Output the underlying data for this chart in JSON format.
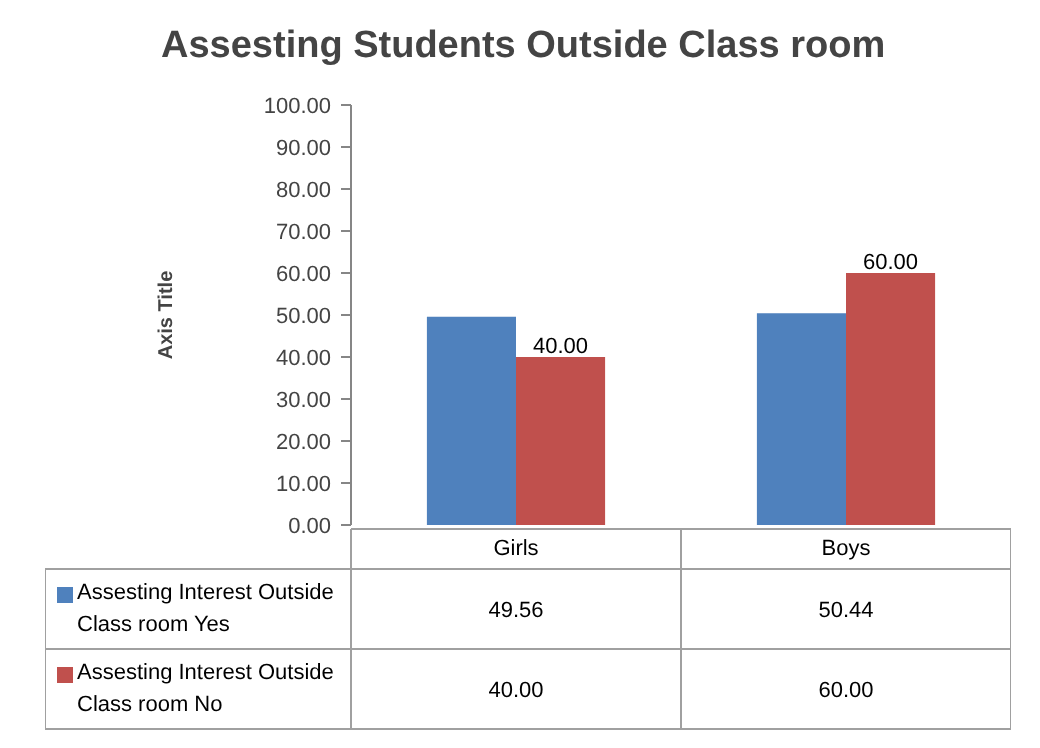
{
  "chart_data": {
    "type": "bar",
    "title": "Assesting Students  Outside Class room",
    "ylabel": "Axis Title",
    "categories": [
      "Girls",
      "Boys"
    ],
    "series": [
      {
        "name": "Assesting Interest Outside Class room Yes",
        "color": "#4f81bd",
        "values": [
          49.56,
          50.44
        ],
        "value_labels": [
          "49.56",
          "50.44"
        ]
      },
      {
        "name": "Assesting Interest Outside Class room No",
        "color": "#c0504d",
        "values": [
          40.0,
          60.0
        ],
        "value_labels": [
          "40.00",
          "60.00"
        ]
      }
    ],
    "ylim": [
      0,
      100
    ],
    "yticks": [
      {
        "value": 0,
        "label": "0.00"
      },
      {
        "value": 10,
        "label": "10.00"
      },
      {
        "value": 20,
        "label": "20.00"
      },
      {
        "value": 30,
        "label": "30.00"
      },
      {
        "value": 40,
        "label": "40.00"
      },
      {
        "value": 50,
        "label": "50.00"
      },
      {
        "value": 60,
        "label": "60.00"
      },
      {
        "value": 70,
        "label": "70.00"
      },
      {
        "value": 80,
        "label": "80.00"
      },
      {
        "value": 90,
        "label": "90.00"
      },
      {
        "value": 100,
        "label": "100.00"
      }
    ],
    "annotations": [
      {
        "text": "40.00",
        "x": "Girls",
        "y": 40
      },
      {
        "text": "60.00",
        "x": "Boys",
        "y": 60
      }
    ],
    "grid": false,
    "legend": "bottom",
    "data_labels": true
  }
}
